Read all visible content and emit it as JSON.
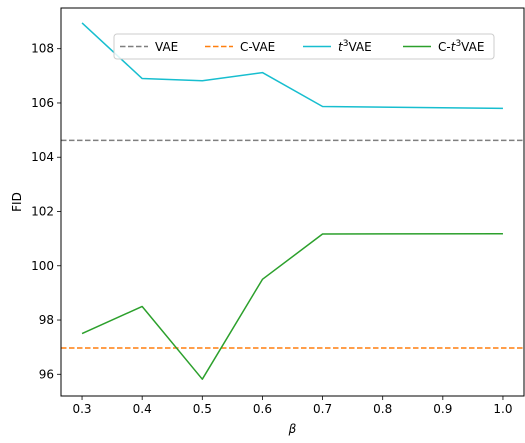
{
  "chart_data": {
    "type": "line",
    "title": "",
    "xlabel": "β",
    "ylabel": "FID",
    "x": [
      0.3,
      0.4,
      0.5,
      0.6,
      0.7,
      1.0
    ],
    "xlim": [
      0.265,
      1.035
    ],
    "ylim": [
      95.2,
      109.5
    ],
    "x_ticks": [
      0.3,
      0.4,
      0.5,
      0.6,
      0.7,
      0.8,
      0.9,
      1.0
    ],
    "x_tick_labels": [
      "0.3",
      "0.4",
      "0.5",
      "0.6",
      "0.7",
      "0.8",
      "0.9",
      "1.0"
    ],
    "y_ticks": [
      96,
      98,
      100,
      102,
      104,
      106,
      108
    ],
    "y_tick_labels": [
      "96",
      "98",
      "100",
      "102",
      "104",
      "106",
      "108"
    ],
    "grid": false,
    "legend_position": "top-center",
    "legend_columns": 4,
    "series": [
      {
        "name": "VAE",
        "kind": "hline",
        "value": 104.62,
        "color": "#7f7f7f",
        "dashed": true
      },
      {
        "name": "C-VAE",
        "kind": "hline",
        "value": 96.97,
        "color": "#ff7f0e",
        "dashed": true
      },
      {
        "name": "t³VAE",
        "name_base": "t",
        "name_sup": "3",
        "name_tail": "VAE",
        "kind": "line",
        "values": [
          108.95,
          106.9,
          106.82,
          107.12,
          105.87,
          105.8
        ],
        "color": "#17becf",
        "dashed": false
      },
      {
        "name": "C-t³VAE",
        "name_base": "C-t",
        "name_sup": "3",
        "name_tail": "VAE",
        "kind": "line",
        "values": [
          97.5,
          98.5,
          95.82,
          99.5,
          101.17,
          101.18
        ],
        "color": "#2ca02c",
        "dashed": false
      }
    ]
  }
}
